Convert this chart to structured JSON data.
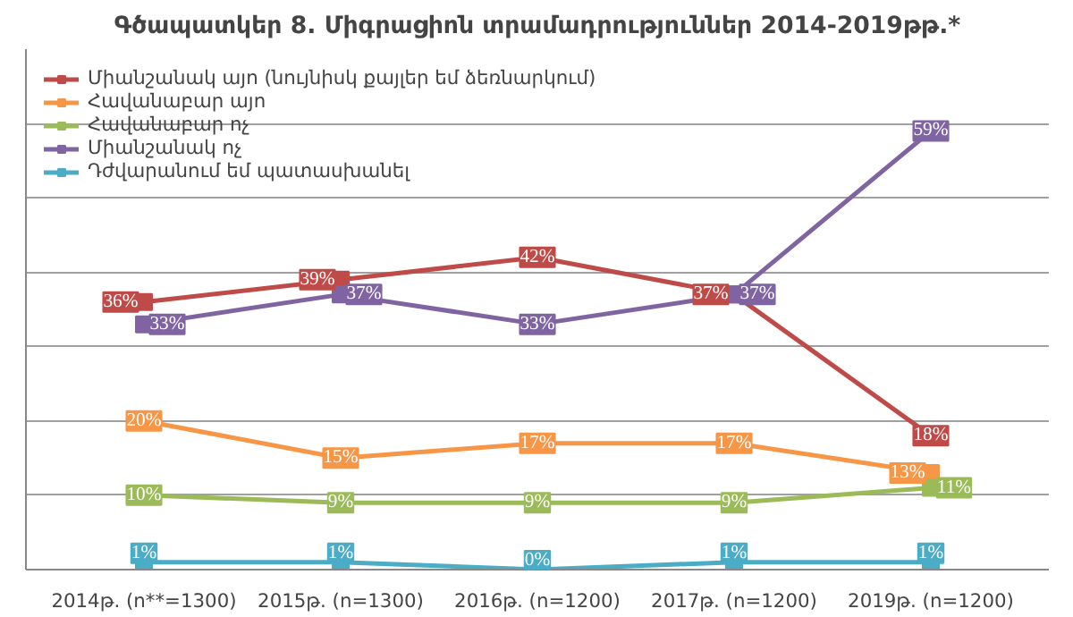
{
  "chart_data": {
    "type": "line",
    "title": "Գծապատկեր 8. Միգրացիոն տրամադրություններ 2014-2019թթ.*",
    "categories": [
      "2014թ. (n**=1300)",
      "2015թ. (n=1300)",
      "2016թ. (n=1200)",
      "2017թ. (n=1200)",
      "2019թ. (n=1200)"
    ],
    "series": [
      {
        "name": "Միանշանակ այո (նույնիսկ քայլեր եմ ձեռնարկում)",
        "color": "#be4b48",
        "values": [
          36,
          39,
          42,
          37,
          18
        ],
        "value_labels": [
          "36%",
          "39%",
          "42%",
          "37%",
          "18%"
        ]
      },
      {
        "name": "Հավանաբար այո",
        "color": "#f79646",
        "values": [
          20,
          15,
          17,
          17,
          13
        ],
        "value_labels": [
          "20%",
          "15%",
          "17%",
          "17%",
          "13%"
        ]
      },
      {
        "name": "Հավանաբար ոչ",
        "color": "#9bbb59",
        "values": [
          10,
          9,
          9,
          9,
          11
        ],
        "value_labels": [
          "10%",
          "9%",
          "9%",
          "9%",
          "11%"
        ]
      },
      {
        "name": "Միանշանակ ոչ",
        "color": "#8064a2",
        "values": [
          33,
          37,
          33,
          37,
          59
        ],
        "value_labels": [
          "33%",
          "37%",
          "33%",
          "37%",
          "59%"
        ]
      },
      {
        "name": "Դժվարանում եմ պատասխանել",
        "color": "#4bacc6",
        "values": [
          1,
          1,
          0,
          1,
          1
        ],
        "value_labels": [
          "1%",
          "1%",
          "0%",
          "1%",
          "1%"
        ]
      }
    ],
    "ylim": [
      0,
      70
    ],
    "yticks": [
      {
        "value": 0,
        "label": null
      },
      {
        "value": 10,
        "label": null
      },
      {
        "value": 20,
        "label": null
      },
      {
        "value": 30,
        "label": null
      },
      {
        "value": 40,
        "label": null
      },
      {
        "value": 50,
        "label": null
      },
      {
        "value": 60,
        "label": null
      }
    ],
    "tick_labels": "x",
    "grid": "y",
    "legend": "top left",
    "marker": "square",
    "line_style": "solid"
  }
}
